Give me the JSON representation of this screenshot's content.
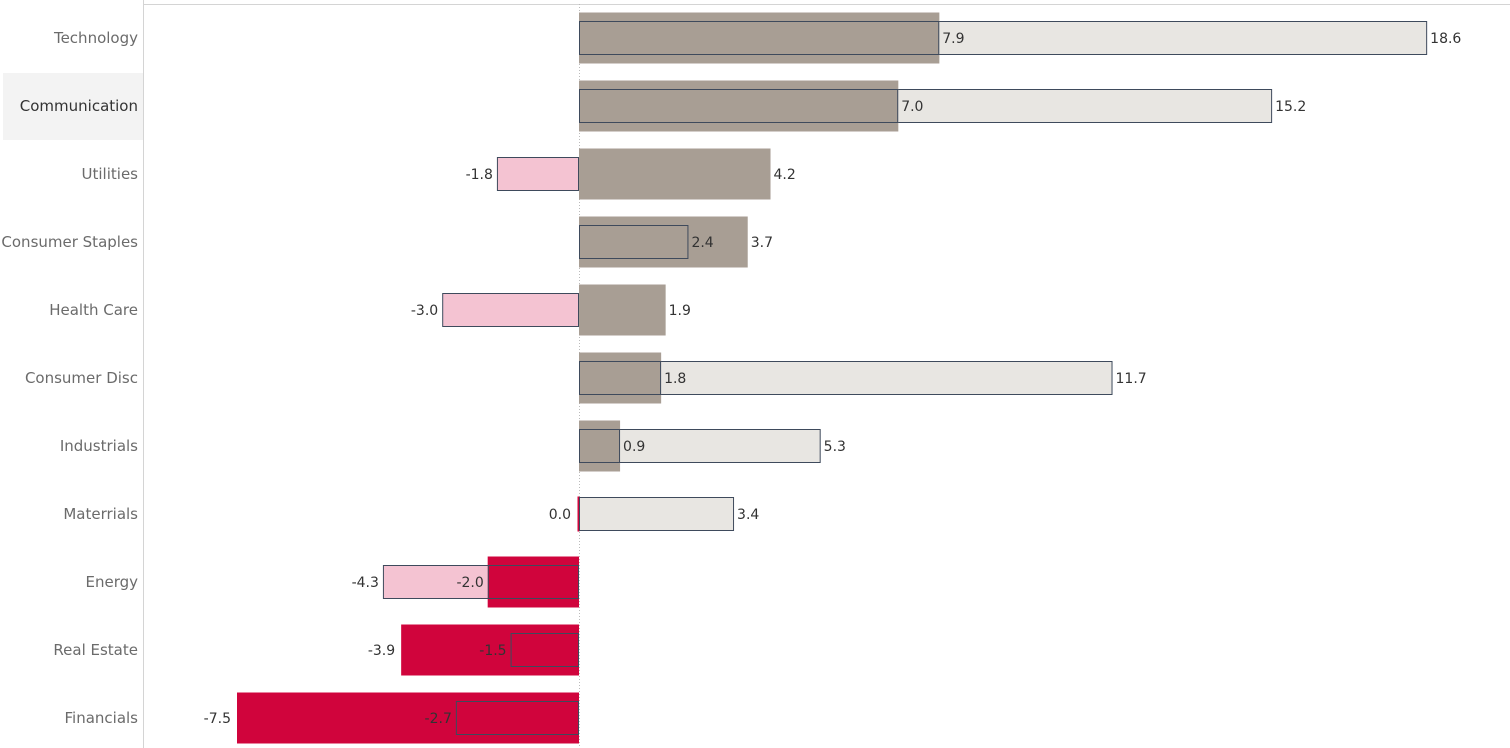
{
  "chart_data": {
    "type": "bar",
    "orientation": "horizontal",
    "categories": [
      "Technology",
      "Communication",
      "Utilities",
      "Consumer Staples",
      "Health Care",
      "Consumer Disc",
      "Industrials",
      "Materrials",
      "Energy",
      "Real Estate",
      "Financials"
    ],
    "highlighted_category": "Communication",
    "series": [
      {
        "role": "wide-filled-bar",
        "values": [
          7.9,
          7.0,
          4.2,
          3.7,
          1.9,
          1.8,
          0.9,
          0.0,
          -2.0,
          -3.9,
          -7.5
        ],
        "labels": [
          "7.9",
          "7.0",
          "4.2",
          "3.7",
          "1.9",
          "1.8",
          "0.9",
          "0.0",
          "-2.0",
          "-3.9",
          "-7.5"
        ]
      },
      {
        "role": "outlined-bar",
        "values": [
          18.6,
          15.2,
          -1.8,
          2.4,
          -3.0,
          11.7,
          5.3,
          3.4,
          -4.3,
          -1.5,
          -2.7
        ],
        "labels": [
          "18.6",
          "15.2",
          "-1.8",
          "2.4",
          "-3.0",
          "11.7",
          "5.3",
          "3.4",
          "-4.3",
          "-1.5",
          "-2.7"
        ]
      }
    ],
    "colors": {
      "positive_fill": "#a89e94",
      "negative_fill": "#d0043c",
      "outline_positive_fill": "#e8e6e2",
      "outline_negative_fill": "#f4c3d2",
      "outline_stroke": "#3e4a5c",
      "zero_line": "#bbbbbb",
      "highlight_band": "#f3f3f3"
    },
    "xlim": [
      -10.7,
      22.5
    ],
    "grid": false
  }
}
